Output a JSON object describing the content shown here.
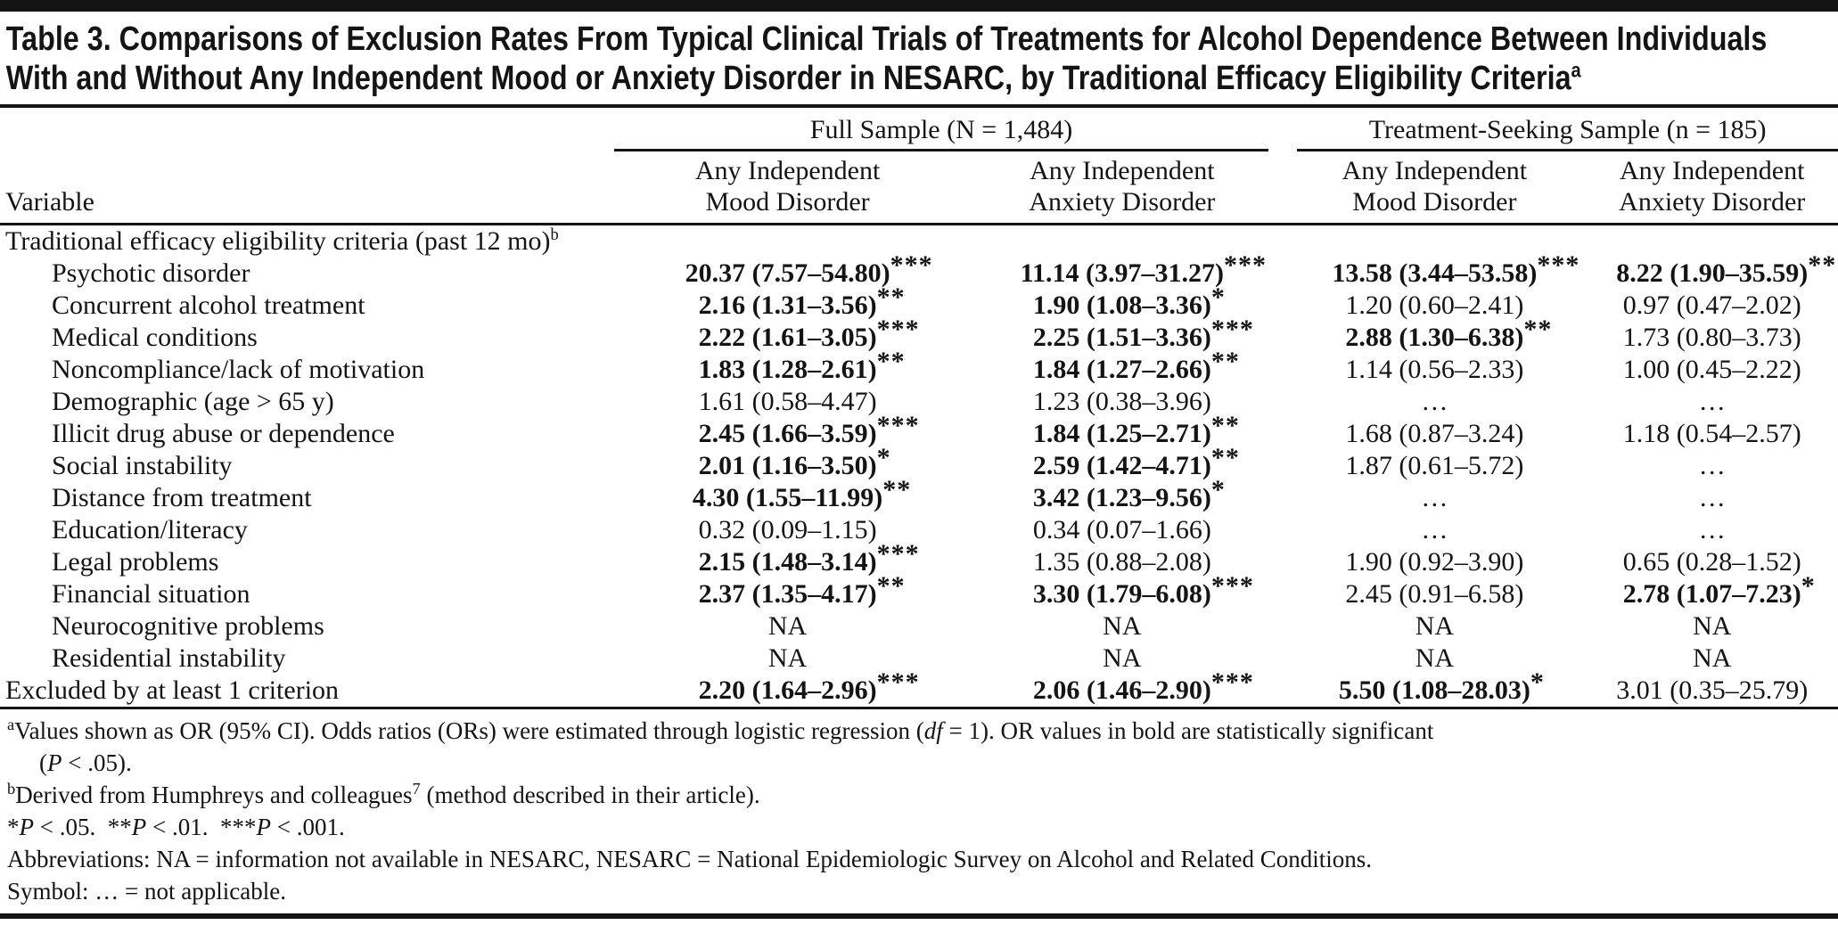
{
  "colors": {
    "text": "#141414",
    "rule": "#141414",
    "background": "#ffffff"
  },
  "title": {
    "line1": "Table 3. Comparisons of Exclusion Rates From Typical Clinical Trials of Treatments for Alcohol Dependence Between Individuals",
    "line2": "With and Without Any Independent Mood or Anxiety Disorder in NESARC, by Traditional Efficacy Eligibility Criteria",
    "sup": "a"
  },
  "table": {
    "variable_header": "Variable",
    "groups": [
      {
        "label": "Full Sample (N = 1,484)",
        "columns": [
          [
            "Any Independent",
            "Mood Disorder"
          ],
          [
            "Any Independent",
            "Anxiety Disorder"
          ]
        ]
      },
      {
        "label": "Treatment-Seeking Sample (n = 185)",
        "columns": [
          [
            "Any Independent",
            "Mood Disorder"
          ],
          [
            "Any Independent",
            "Anxiety Disorder"
          ]
        ]
      }
    ],
    "rows": [
      {
        "label": "Traditional efficacy eligibility criteria (past 12 mo)",
        "label_sup": "b",
        "indent": false,
        "cells": []
      },
      {
        "label": "Psychotic disorder",
        "indent": true,
        "cells": [
          {
            "or": "20.37 (7.57–54.80)",
            "stars": "***",
            "bold": true
          },
          {
            "or": "11.14 (3.97–31.27)",
            "stars": "***",
            "bold": true
          },
          {
            "or": "13.58 (3.44–53.58)",
            "stars": "***",
            "bold": true
          },
          {
            "or": "8.22 (1.90–35.59)",
            "stars": "**",
            "bold": true
          }
        ]
      },
      {
        "label": "Concurrent alcohol treatment",
        "indent": true,
        "cells": [
          {
            "or": "2.16 (1.31–3.56)",
            "stars": "**",
            "bold": true
          },
          {
            "or": "1.90 (1.08–3.36)",
            "stars": "*",
            "bold": true
          },
          {
            "or": "1.20 (0.60–2.41)",
            "stars": "",
            "bold": false
          },
          {
            "or": "0.97 (0.47–2.02)",
            "stars": "",
            "bold": false
          }
        ]
      },
      {
        "label": "Medical conditions",
        "indent": true,
        "cells": [
          {
            "or": "2.22 (1.61–3.05)",
            "stars": "***",
            "bold": true
          },
          {
            "or": "2.25 (1.51–3.36)",
            "stars": "***",
            "bold": true
          },
          {
            "or": "2.88 (1.30–6.38)",
            "stars": "**",
            "bold": true
          },
          {
            "or": "1.73 (0.80–3.73)",
            "stars": "",
            "bold": false
          }
        ]
      },
      {
        "label": "Noncompliance/lack of motivation",
        "indent": true,
        "cells": [
          {
            "or": "1.83 (1.28–2.61)",
            "stars": "**",
            "bold": true
          },
          {
            "or": "1.84 (1.27–2.66)",
            "stars": "**",
            "bold": true
          },
          {
            "or": "1.14 (0.56–2.33)",
            "stars": "",
            "bold": false
          },
          {
            "or": "1.00 (0.45–2.22)",
            "stars": "",
            "bold": false
          }
        ]
      },
      {
        "label": "Demographic (age > 65 y)",
        "indent": true,
        "cells": [
          {
            "or": "1.61 (0.58–4.47)",
            "stars": "",
            "bold": false
          },
          {
            "or": "1.23 (0.38–3.96)",
            "stars": "",
            "bold": false
          },
          {
            "or": "…",
            "stars": "",
            "bold": false
          },
          {
            "or": "…",
            "stars": "",
            "bold": false
          }
        ]
      },
      {
        "label": "Illicit drug abuse or dependence",
        "indent": true,
        "cells": [
          {
            "or": "2.45 (1.66–3.59)",
            "stars": "***",
            "bold": true
          },
          {
            "or": "1.84 (1.25–2.71)",
            "stars": "**",
            "bold": true
          },
          {
            "or": "1.68 (0.87–3.24)",
            "stars": "",
            "bold": false
          },
          {
            "or": "1.18 (0.54–2.57)",
            "stars": "",
            "bold": false
          }
        ]
      },
      {
        "label": "Social instability",
        "indent": true,
        "cells": [
          {
            "or": "2.01 (1.16–3.50)",
            "stars": "*",
            "bold": true
          },
          {
            "or": "2.59 (1.42–4.71)",
            "stars": "**",
            "bold": true
          },
          {
            "or": "1.87 (0.61–5.72)",
            "stars": "",
            "bold": false
          },
          {
            "or": "…",
            "stars": "",
            "bold": false
          }
        ]
      },
      {
        "label": "Distance from treatment",
        "indent": true,
        "cells": [
          {
            "or": "4.30 (1.55–11.99)",
            "stars": "**",
            "bold": true
          },
          {
            "or": "3.42 (1.23–9.56)",
            "stars": "*",
            "bold": true
          },
          {
            "or": "…",
            "stars": "",
            "bold": false
          },
          {
            "or": "…",
            "stars": "",
            "bold": false
          }
        ]
      },
      {
        "label": "Education/literacy",
        "indent": true,
        "cells": [
          {
            "or": "0.32 (0.09–1.15)",
            "stars": "",
            "bold": false
          },
          {
            "or": "0.34 (0.07–1.66)",
            "stars": "",
            "bold": false
          },
          {
            "or": "…",
            "stars": "",
            "bold": false
          },
          {
            "or": "…",
            "stars": "",
            "bold": false
          }
        ]
      },
      {
        "label": "Legal problems",
        "indent": true,
        "cells": [
          {
            "or": "2.15 (1.48–3.14)",
            "stars": "***",
            "bold": true
          },
          {
            "or": "1.35 (0.88–2.08)",
            "stars": "",
            "bold": false
          },
          {
            "or": "1.90 (0.92–3.90)",
            "stars": "",
            "bold": false
          },
          {
            "or": "0.65 (0.28–1.52)",
            "stars": "",
            "bold": false
          }
        ]
      },
      {
        "label": "Financial situation",
        "indent": true,
        "cells": [
          {
            "or": "2.37 (1.35–4.17)",
            "stars": "**",
            "bold": true
          },
          {
            "or": "3.30 (1.79–6.08)",
            "stars": "***",
            "bold": true
          },
          {
            "or": "2.45 (0.91–6.58)",
            "stars": "",
            "bold": false
          },
          {
            "or": "2.78 (1.07–7.23)",
            "stars": "*",
            "bold": true
          }
        ]
      },
      {
        "label": "Neurocognitive problems",
        "indent": true,
        "cells": [
          {
            "or": "NA",
            "stars": "",
            "bold": false
          },
          {
            "or": "NA",
            "stars": "",
            "bold": false
          },
          {
            "or": "NA",
            "stars": "",
            "bold": false
          },
          {
            "or": "NA",
            "stars": "",
            "bold": false
          }
        ]
      },
      {
        "label": "Residential instability",
        "indent": true,
        "cells": [
          {
            "or": "NA",
            "stars": "",
            "bold": false
          },
          {
            "or": "NA",
            "stars": "",
            "bold": false
          },
          {
            "or": "NA",
            "stars": "",
            "bold": false
          },
          {
            "or": "NA",
            "stars": "",
            "bold": false
          }
        ]
      },
      {
        "label": "Excluded by at least 1 criterion",
        "indent": false,
        "cells": [
          {
            "or": "2.20 (1.64–2.96)",
            "stars": "***",
            "bold": true
          },
          {
            "or": "2.06 (1.46–2.90)",
            "stars": "***",
            "bold": true
          },
          {
            "or": "5.50 (1.08–28.03)",
            "stars": "*",
            "bold": true
          },
          {
            "or": "3.01 (0.35–25.79)",
            "stars": "",
            "bold": false
          }
        ]
      }
    ]
  },
  "footnotes": [
    [
      {
        "t": "a",
        "sup": true
      },
      {
        "t": "Values shown as OR (95% CI). Odds ratios (ORs) were estimated through logistic regression ("
      },
      {
        "t": "df",
        "i": true
      },
      {
        "t": " = 1). OR values in bold are statistically significant"
      },
      {
        "br": true
      },
      {
        "t": "("
      },
      {
        "t": "P",
        "i": true
      },
      {
        "t": " < .05)."
      }
    ],
    [
      {
        "t": "b",
        "sup": true
      },
      {
        "t": "Derived from Humphreys and colleagues"
      },
      {
        "t": "7",
        "sup": true
      },
      {
        "t": " (method described in their article)."
      }
    ],
    [
      {
        "t": "*"
      },
      {
        "t": "P",
        "i": true
      },
      {
        "t": " < .05.  **"
      },
      {
        "t": "P",
        "i": true
      },
      {
        "t": " < .01.  ***"
      },
      {
        "t": "P",
        "i": true
      },
      {
        "t": " < .001."
      }
    ],
    [
      {
        "t": "Abbreviations: NA = information not available in NESARC, NESARC = National Epidemiologic Survey on Alcohol and Related Conditions."
      }
    ],
    [
      {
        "t": "Symbol: … = not applicable."
      }
    ]
  ]
}
